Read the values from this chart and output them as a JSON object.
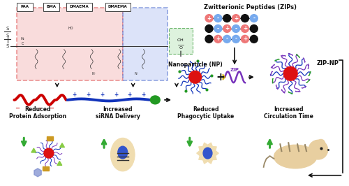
{
  "background_color": "#ffffff",
  "figsize": [
    5.0,
    2.66
  ],
  "dpi": 100,
  "labels": {
    "zwitterionic_peptides": "Zwitterionic Peptides (ZIPs)",
    "nanoparticle": "Nanoparticle (NP)",
    "zip": "ZIP",
    "zip_np": "ZIP-NP",
    "reduced_protein": "Reduced\nProtein Adsorption",
    "increased_sirna": "Increased\nsiRNA Delivery",
    "reduced_phago": "Reduced\nPhagocytic Uptake",
    "increased_circ": "Increased\nCirculation Time",
    "paa": "PAA",
    "bma": "BMA",
    "dmaema1": "DMAEMA",
    "dmaema2": "DMAEMA"
  },
  "colors": {
    "red_box": "#f5c0c0",
    "blue_box": "#c0ccf5",
    "green_box_edge": "#55aa55",
    "green_box_fill": "#d8f0d8",
    "red_dashed": "#dd4444",
    "blue_dashed": "#4466cc",
    "arrow": "#111111",
    "polymer_red": "#cc0000",
    "polymer_blue": "#1133bb",
    "polymer_green": "#229922",
    "nanoparticle_center": "#dd1111",
    "zip_purple": "#7733bb",
    "zip_yellow": "#ccaa00",
    "plus_color": "#ee7777",
    "minus_color": "#77aaee",
    "black_bead": "#111111",
    "green_arrow": "#33aa33",
    "label_text": "#111111",
    "cell_fill": "#f0ddb0",
    "cell_outline": "#999966",
    "cell_nucleus": "#3355cc",
    "mouse_fill": "#e8cfa0",
    "mouse_outline": "#998866"
  }
}
